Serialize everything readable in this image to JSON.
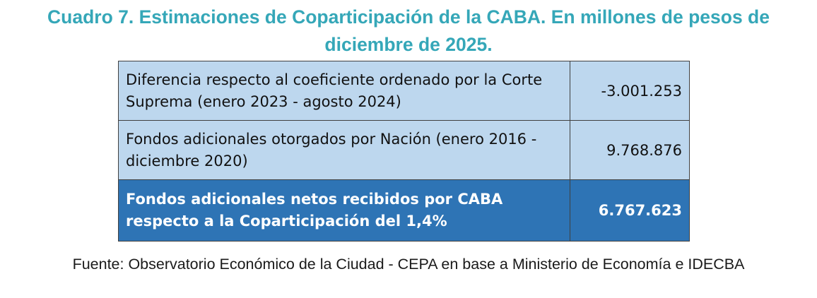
{
  "title": {
    "line1": "Cuadro 7. Estimaciones de Coparticipación de la CABA. En millones de pesos de",
    "line2": "diciembre de 2025."
  },
  "colors": {
    "title": "#35a7b8",
    "row_light_bg": "#bdd7ee",
    "row_dark_bg": "#2e74b5",
    "row_dark_text": "#ffffff"
  },
  "table": {
    "rows": [
      {
        "label": "Diferencia respecto al coeficiente ordenado por la Corte Suprema (enero 2023 - agosto 2024)",
        "value": "-3.001.253"
      },
      {
        "label": "Fondos adicionales otorgados por Nación (enero 2016 - diciembre 2020)",
        "value": "9.768.876"
      },
      {
        "label": "Fondos adicionales netos recibidos por CABA respecto a la Coparticipación del 1,4%",
        "value": "6.767.623"
      }
    ]
  },
  "source": "Fuente: Observatorio Económico de la Ciudad - CEPA en base a Ministerio de Economía e IDECBA"
}
